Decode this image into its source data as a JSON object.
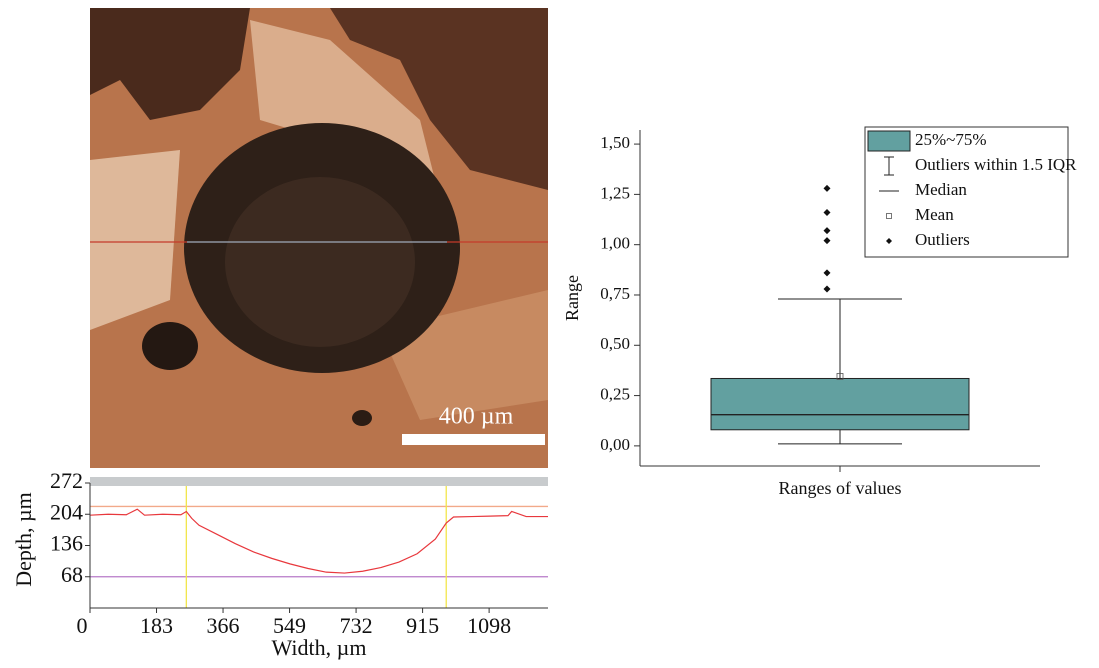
{
  "image": {
    "scale_bar": "400 µm"
  },
  "chart_data": [
    {
      "type": "line",
      "x_label": "Width, µm",
      "y_label": "Depth, µm",
      "x": [
        0,
        50,
        100,
        130,
        150,
        200,
        250,
        265,
        280,
        300,
        350,
        400,
        450,
        500,
        550,
        600,
        650,
        700,
        750,
        800,
        850,
        900,
        950,
        980,
        1000,
        1050,
        1100,
        1150,
        1160,
        1200,
        1260
      ],
      "values": [
        202,
        204,
        203,
        215,
        202,
        204,
        203,
        210,
        195,
        180,
        160,
        140,
        122,
        108,
        96,
        86,
        78,
        76,
        80,
        88,
        100,
        118,
        150,
        185,
        198,
        199,
        200,
        201,
        210,
        199,
        199
      ],
      "color": "#e8383d",
      "xlim": [
        0,
        1260
      ],
      "xticks": [
        0,
        183,
        366,
        549,
        732,
        915,
        1098
      ],
      "ylim": [
        0,
        272
      ],
      "yticks": [
        68,
        136,
        204,
        272
      ],
      "vlines": [
        265,
        980
      ],
      "vline_color": "#f2e64a",
      "hlines": [
        221,
        68
      ],
      "hline_colors": [
        "#f2a98a",
        "#b77ac8"
      ]
    },
    {
      "type": "box",
      "x_label": "",
      "y_label": "Range",
      "categories": [
        "Ranges of values"
      ],
      "color": "#62a0a0",
      "boxes": [
        {
          "whisker_low": 0.01,
          "q1": 0.08,
          "median": 0.155,
          "q3": 0.335,
          "whisker_high": 0.73,
          "mean": 0.345,
          "outliers": [
            0.78,
            0.86,
            1.02,
            1.07,
            1.16,
            1.28
          ]
        }
      ],
      "ylim": [
        -0.1,
        1.57
      ],
      "yticks": [
        {
          "value": 0,
          "label": "0,00"
        },
        {
          "value": 0.25,
          "label": "0,25"
        },
        {
          "value": 0.5,
          "label": "0,50"
        },
        {
          "value": 0.75,
          "label": "0,75"
        },
        {
          "value": 1,
          "label": "1,00"
        },
        {
          "value": 1.25,
          "label": "1,25"
        },
        {
          "value": 1.5,
          "label": "1,50"
        }
      ],
      "legend": {
        "box": "25%~75%",
        "whisker": "Outliers within 1.5 IQR",
        "median": "Median",
        "mean": "Mean",
        "outliers": "Outliers"
      },
      "legend_position": "upper right"
    }
  ]
}
